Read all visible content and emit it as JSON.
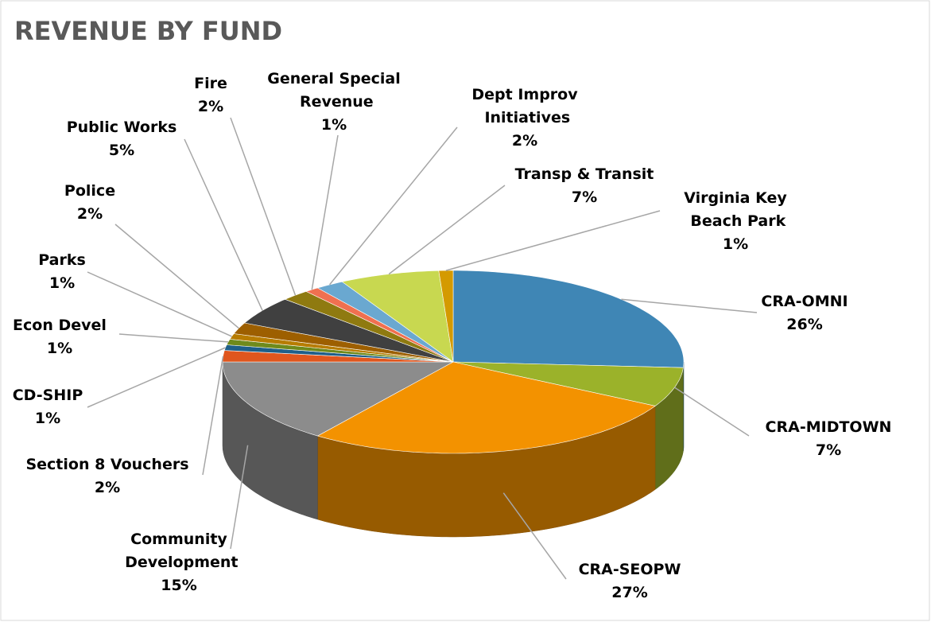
{
  "chart_data": {
    "type": "pie",
    "title": "REVENUE BY FUND",
    "categories": [
      "CRA-OMNI",
      "CRA-MIDTOWN",
      "CRA-SEOPW",
      "Community Development",
      "Section 8 Vouchers",
      "CD-SHIP",
      "Econ Devel",
      "Parks",
      "Police",
      "Public Works",
      "Fire",
      "General Special Revenue",
      "Dept Improv Initiatives",
      "Transp & Transit",
      "Virginia Key Beach Park"
    ],
    "values": [
      26,
      7,
      27,
      15,
      2,
      1,
      1,
      1,
      2,
      5,
      2,
      1,
      2,
      7,
      1
    ],
    "value_labels": [
      "26%",
      "7%",
      "27%",
      "15%",
      "2%",
      "1%",
      "1%",
      "1%",
      "2%",
      "5%",
      "2%",
      "1%",
      "2%",
      "7%",
      "1%"
    ],
    "colors": [
      "#3f86b5",
      "#9bb22a",
      "#f39200",
      "#8c8c8c",
      "#e0561e",
      "#1e5f8a",
      "#6f8a1c",
      "#b77c00",
      "#9d5f00",
      "#404040",
      "#8f7a10",
      "#f07050",
      "#6aa8d0",
      "#c8d850",
      "#d49a00"
    ]
  }
}
